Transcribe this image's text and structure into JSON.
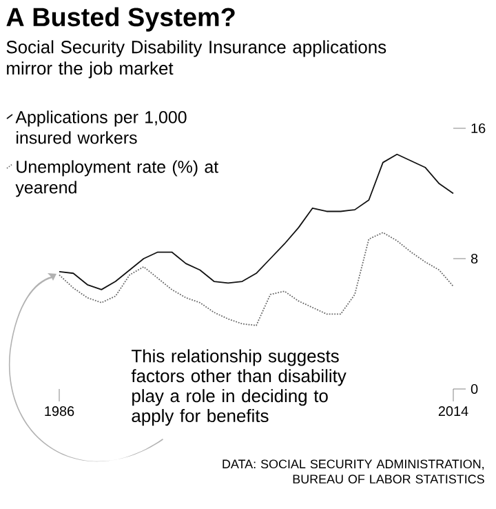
{
  "chart_data": {
    "type": "line",
    "title": "A Busted System?",
    "subtitle": "Social Security Disability Insurance applications mirror the job market",
    "x": [
      1986,
      1987,
      1988,
      1989,
      1990,
      1991,
      1992,
      1993,
      1994,
      1995,
      1996,
      1997,
      1998,
      1999,
      2000,
      2001,
      2002,
      2003,
      2004,
      2005,
      2006,
      2007,
      2008,
      2009,
      2010,
      2011,
      2012,
      2013,
      2014
    ],
    "series": [
      {
        "name": "Applications per 1,000 insured workers",
        "color": "#111111",
        "line_style": "solid",
        "values": [
          7.2,
          7.1,
          6.4,
          6.1,
          6.6,
          7.3,
          8.0,
          8.4,
          8.4,
          7.7,
          7.3,
          6.6,
          6.5,
          6.6,
          7.1,
          8.0,
          8.9,
          9.9,
          11.1,
          10.9,
          10.9,
          11.0,
          11.6,
          13.9,
          14.4,
          14.0,
          13.6,
          12.6,
          12.0
        ]
      },
      {
        "name": "Unemployment rate (%) at yearend",
        "color": "#666666",
        "line_style": "dotted",
        "values": [
          7.0,
          6.2,
          5.6,
          5.3,
          5.7,
          7.0,
          7.5,
          6.8,
          6.1,
          5.6,
          5.3,
          4.7,
          4.3,
          4.0,
          3.9,
          5.8,
          6.0,
          5.4,
          5.0,
          4.6,
          4.6,
          5.8,
          9.2,
          9.6,
          9.1,
          8.4,
          7.8,
          7.3,
          6.3
        ]
      }
    ],
    "xlim": [
      1986,
      2014
    ],
    "ylim": [
      0,
      16
    ],
    "xticks": [
      1986,
      2014
    ],
    "yticks": [
      0,
      8,
      16
    ],
    "legend": "top left",
    "annotations": [
      "This relationship suggests factors other than disability play a role in deciding to apply for benefits",
      "DATA: SOCIAL SECURITY ADMINISTRATION, BUREAU OF LABOR STATISTICS"
    ]
  }
}
